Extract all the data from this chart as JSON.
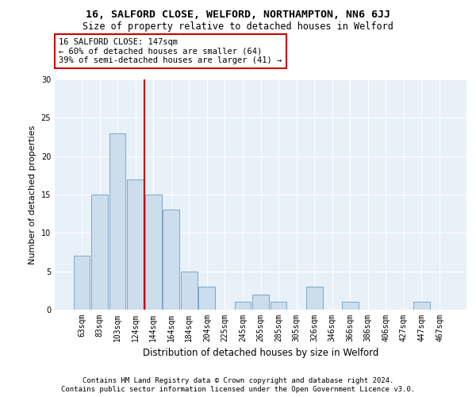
{
  "title1": "16, SALFORD CLOSE, WELFORD, NORTHAMPTON, NN6 6JJ",
  "title2": "Size of property relative to detached houses in Welford",
  "xlabel": "Distribution of detached houses by size in Welford",
  "ylabel": "Number of detached properties",
  "categories": [
    "63sqm",
    "83sqm",
    "103sqm",
    "124sqm",
    "144sqm",
    "164sqm",
    "184sqm",
    "204sqm",
    "225sqm",
    "245sqm",
    "265sqm",
    "285sqm",
    "305sqm",
    "326sqm",
    "346sqm",
    "366sqm",
    "386sqm",
    "406sqm",
    "427sqm",
    "447sqm",
    "467sqm"
  ],
  "values": [
    7,
    15,
    23,
    17,
    15,
    13,
    5,
    3,
    0,
    1,
    2,
    1,
    0,
    3,
    0,
    1,
    0,
    0,
    0,
    1,
    0
  ],
  "bar_color": "#ccdded",
  "bar_edgecolor": "#7aaac8",
  "vline_color": "#cc0000",
  "annotation_line1": "16 SALFORD CLOSE: 147sqm",
  "annotation_line2": "← 60% of detached houses are smaller (64)",
  "annotation_line3": "39% of semi-detached houses are larger (41) →",
  "annotation_box_color": "#ffffff",
  "annotation_box_edgecolor": "#cc0000",
  "ylim": [
    0,
    30
  ],
  "yticks": [
    0,
    5,
    10,
    15,
    20,
    25,
    30
  ],
  "plot_background": "#e8f0f8",
  "footer1": "Contains HM Land Registry data © Crown copyright and database right 2024.",
  "footer2": "Contains public sector information licensed under the Open Government Licence v3.0.",
  "title1_fontsize": 9.5,
  "title2_fontsize": 8.5,
  "xlabel_fontsize": 8.5,
  "ylabel_fontsize": 8,
  "tick_fontsize": 7,
  "footer_fontsize": 6.5,
  "annotation_fontsize": 7.5
}
